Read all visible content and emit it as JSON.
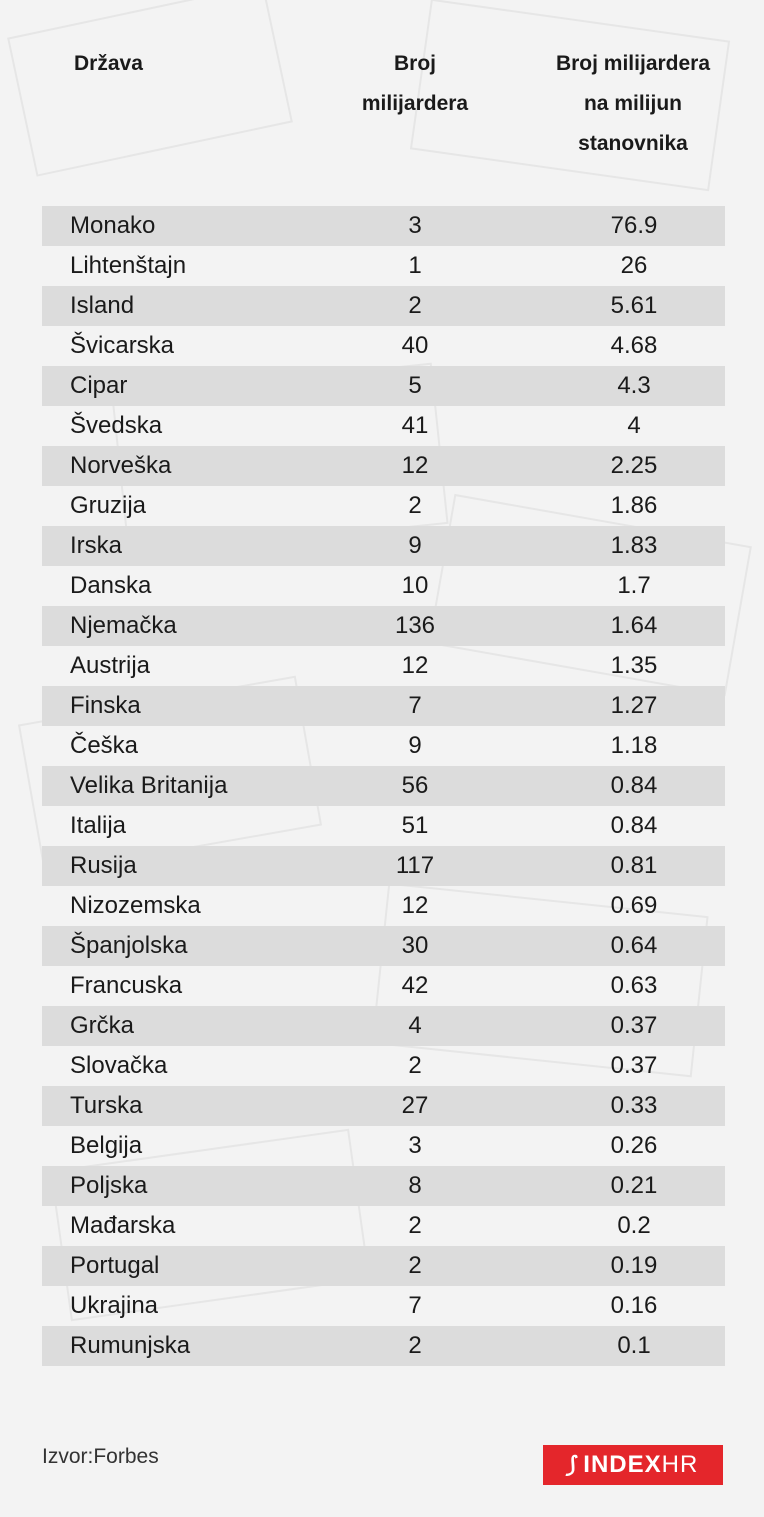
{
  "header": {
    "country": "Država",
    "count": "Broj\nmilijardera",
    "per_million": "Broj milijardera\nna milijun\nstanovnika"
  },
  "chart_data": {
    "type": "table",
    "columns": [
      "Država",
      "Broj milijardera",
      "Broj milijardera na milijun stanovnika"
    ],
    "rows": [
      [
        "Monako",
        "3",
        "76.9"
      ],
      [
        "Lihtenštajn",
        "1",
        "26"
      ],
      [
        "Island",
        "2",
        "5.61"
      ],
      [
        "Švicarska",
        "40",
        "4.68"
      ],
      [
        "Cipar",
        "5",
        "4.3"
      ],
      [
        "Švedska",
        "41",
        "4"
      ],
      [
        "Norveška",
        "12",
        "2.25"
      ],
      [
        "Gruzija",
        "2",
        "1.86"
      ],
      [
        "Irska",
        "9",
        "1.83"
      ],
      [
        "Danska",
        "10",
        "1.7"
      ],
      [
        "Njemačka",
        "136",
        "1.64"
      ],
      [
        "Austrija",
        "12",
        "1.35"
      ],
      [
        "Finska",
        "7",
        "1.27"
      ],
      [
        "Češka",
        "9",
        "1.18"
      ],
      [
        "Velika Britanija",
        "56",
        "0.84"
      ],
      [
        "Italija",
        "51",
        "0.84"
      ],
      [
        "Rusija",
        "117",
        "0.81"
      ],
      [
        "Nizozemska",
        "12",
        "0.69"
      ],
      [
        "Španjolska",
        "30",
        "0.64"
      ],
      [
        "Francuska",
        "42",
        "0.63"
      ],
      [
        "Grčka",
        "4",
        "0.37"
      ],
      [
        "Slovačka",
        "2",
        "0.37"
      ],
      [
        "Turska",
        "27",
        "0.33"
      ],
      [
        "Belgija",
        "3",
        "0.26"
      ],
      [
        "Poljska",
        "8",
        "0.21"
      ],
      [
        "Mađarska",
        "2",
        "0.2"
      ],
      [
        "Portugal",
        "2",
        "0.19"
      ],
      [
        "Ukrajina",
        "7",
        "0.16"
      ],
      [
        "Rumunjska",
        "2",
        "0.1"
      ]
    ]
  },
  "footer": {
    "source": "Izvor:Forbes",
    "logo_main": "INDEX",
    "logo_suffix": "HR"
  },
  "colors": {
    "row_shade": "#dcdcdc",
    "background": "#f3f3f3",
    "logo_red": "#e4262b"
  }
}
